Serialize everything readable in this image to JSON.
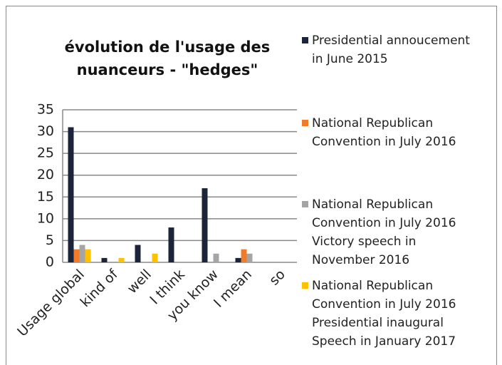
{
  "chart_data": {
    "type": "bar",
    "title": "évolution de l'usage des nuanceurs - \"hedges\"",
    "categories": [
      "Usage global",
      "kind of",
      "well",
      "I think",
      "you know",
      "I mean",
      "so"
    ],
    "series": [
      {
        "name": "Presidential annoucement in June 2015",
        "color": "#1c2439",
        "values": [
          31,
          1,
          4,
          8,
          17,
          1,
          0
        ]
      },
      {
        "name": "National Republican Convention in July 2016",
        "color": "#f07c2a",
        "values": [
          3,
          0,
          0,
          0,
          0,
          3,
          0
        ]
      },
      {
        "name": "National Republican Convention in July 2016 Victory speech in November 2016",
        "color": "#a5a5a5",
        "values": [
          4,
          0,
          0,
          0,
          2,
          2,
          0
        ]
      },
      {
        "name": "National Republican Convention in July 2016 Presidential inaugural Speech in January 2017",
        "color": "#ffc000",
        "values": [
          3,
          1,
          2,
          0,
          0,
          0,
          0
        ]
      }
    ],
    "ylim": [
      0,
      35
    ],
    "yticks": [
      0,
      5,
      10,
      15,
      20,
      25,
      30,
      35
    ],
    "grid": true,
    "legend": "right"
  }
}
